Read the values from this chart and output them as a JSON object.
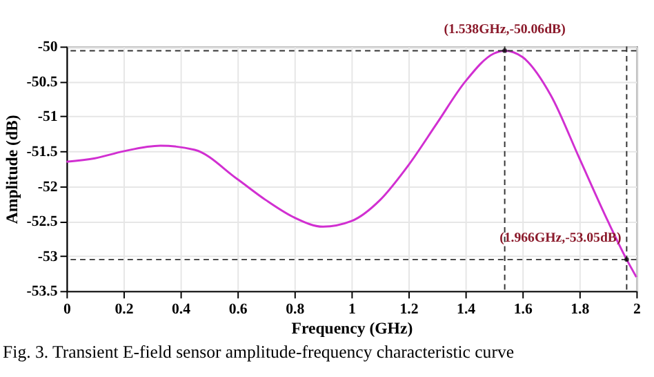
{
  "chart_data": {
    "type": "line",
    "xlabel": "Frequency (GHz)",
    "ylabel": "Amplitude (dB)",
    "series": [
      {
        "color": "#d12fd1",
        "x": [
          0,
          0.1,
          0.2,
          0.33,
          0.45,
          0.6,
          0.7,
          0.8,
          0.9,
          1.0,
          1.1,
          1.2,
          1.3,
          1.4,
          1.5,
          1.538,
          1.6,
          1.7,
          1.8,
          1.9,
          1.966,
          2.0
        ],
        "values": [
          -51.65,
          -51.6,
          -51.5,
          -51.42,
          -51.48,
          -51.9,
          -52.2,
          -52.45,
          -52.58,
          -52.5,
          -52.2,
          -51.7,
          -51.1,
          -50.5,
          -50.1,
          -50.06,
          -50.15,
          -50.7,
          -51.6,
          -52.5,
          -53.05,
          -53.3
        ]
      }
    ],
    "xlim": [
      0,
      2
    ],
    "xticks": [
      0,
      0.2,
      0.4,
      0.6,
      0.8,
      1,
      1.2,
      1.4,
      1.6,
      1.8,
      2
    ],
    "ylim": [
      -53.5,
      -50
    ],
    "yticks": [
      -53.5,
      -53,
      -52.5,
      -52,
      -51.5,
      -51,
      -50.5,
      -50
    ],
    "grid": true,
    "line_style": "solid",
    "marker": "none",
    "ref_lines": [
      {
        "axis": "x",
        "value": 1.538,
        "line_style": "dashed"
      },
      {
        "axis": "x",
        "value": 1.966,
        "line_style": "dashed"
      },
      {
        "axis": "y",
        "value": -50.06,
        "line_style": "dashed"
      },
      {
        "axis": "y",
        "value": -53.05,
        "line_style": "dashed"
      }
    ],
    "annotations": [
      {
        "text": "(1.538GHz,-50.06dB)",
        "x": 1.538,
        "y": -50.06
      },
      {
        "text": "(1.966GHz,-53.05dB)",
        "x": 1.966,
        "y": -53.05
      },
      "Fig. 3. Transient E-field sensor amplitude-frequency characteristic curve"
    ]
  }
}
